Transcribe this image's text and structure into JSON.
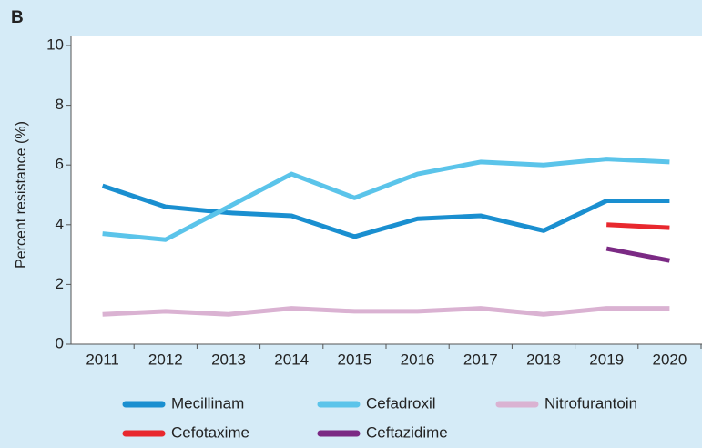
{
  "chart_data": {
    "type": "line",
    "panel_label": "B",
    "ylabel": "Percent resistance (%)",
    "categories": [
      "2011",
      "2012",
      "2013",
      "2014",
      "2015",
      "2016",
      "2017",
      "2018",
      "2019",
      "2020"
    ],
    "series": [
      {
        "name": "Mecillinam",
        "color": "#1a8fd0",
        "values": [
          5.3,
          4.6,
          4.4,
          4.3,
          3.6,
          4.2,
          4.3,
          3.8,
          4.8,
          4.8
        ]
      },
      {
        "name": "Cefadroxil",
        "color": "#5bc4ea",
        "values": [
          3.7,
          3.5,
          4.6,
          5.7,
          4.9,
          5.7,
          6.1,
          6.0,
          6.2,
          6.1
        ]
      },
      {
        "name": "Nitrofurantoin",
        "color": "#dab2d2",
        "values": [
          1.0,
          1.1,
          1.0,
          1.2,
          1.1,
          1.1,
          1.2,
          1.0,
          1.2,
          1.2
        ]
      },
      {
        "name": "Cefotaxime",
        "color": "#e8282e",
        "values": [
          null,
          null,
          null,
          null,
          null,
          null,
          null,
          null,
          4.0,
          3.9
        ]
      },
      {
        "name": "Ceftazidime",
        "color": "#7b2a84",
        "values": [
          null,
          null,
          null,
          null,
          null,
          null,
          null,
          null,
          3.2,
          2.8
        ]
      }
    ],
    "ylim": [
      0,
      10
    ],
    "yticks": [
      0,
      2,
      4,
      6,
      8,
      10
    ],
    "grid": false,
    "legend": "bottom"
  }
}
